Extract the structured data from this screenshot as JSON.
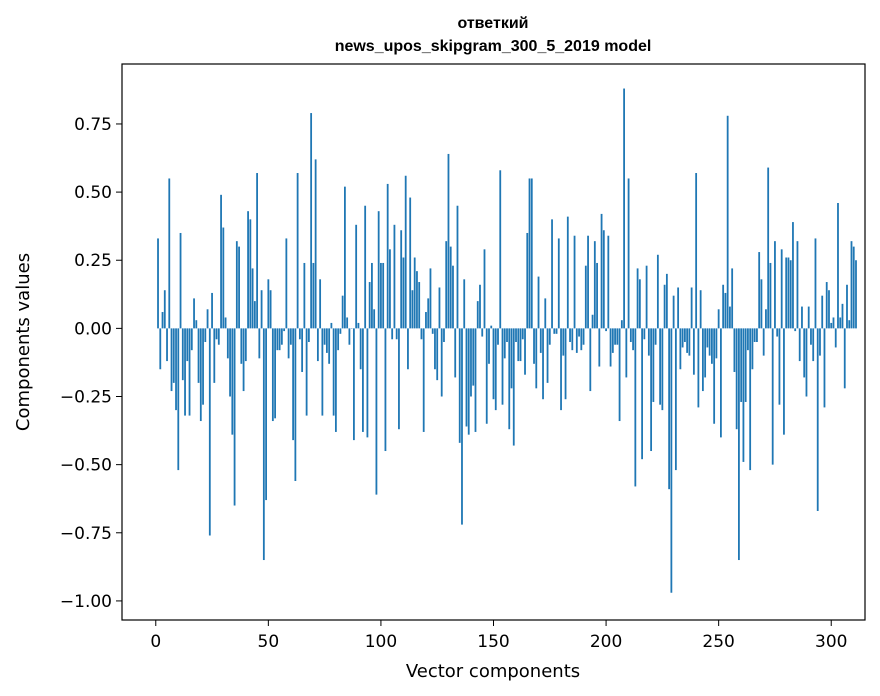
{
  "chart_data": {
    "type": "bar",
    "title_line1": "ответкий",
    "title_line2": "news_upos_skipgram_300_5_2019 model",
    "xlabel": "Vector components",
    "ylabel": "Components values",
    "xlim": [
      -15,
      315
    ],
    "ylim": [
      -1.07,
      0.97
    ],
    "xticks": [
      0,
      50,
      100,
      150,
      200,
      250,
      300
    ],
    "xtick_labels": [
      "0",
      "50",
      "100",
      "150",
      "200",
      "250",
      "300"
    ],
    "yticks": [
      0.75,
      0.5,
      0.25,
      0.0,
      -0.25,
      -0.5,
      -0.75,
      -1.0
    ],
    "ytick_labels": [
      "0.75",
      "0.50",
      "0.25",
      "0.00",
      "−0.25",
      "−0.50",
      "−0.75",
      "−1.00"
    ],
    "bar_color": "#1f77b4",
    "x_start": 1,
    "values": [
      0.33,
      -0.15,
      0.06,
      0.14,
      -0.12,
      0.55,
      -0.23,
      -0.2,
      -0.3,
      -0.52,
      0.35,
      -0.19,
      -0.32,
      -0.12,
      -0.32,
      -0.08,
      0.11,
      0.03,
      -0.2,
      -0.34,
      -0.28,
      -0.05,
      0.07,
      -0.76,
      0.13,
      -0.2,
      -0.04,
      -0.06,
      0.49,
      0.37,
      0.04,
      -0.11,
      -0.25,
      -0.39,
      -0.65,
      0.32,
      0.3,
      -0.13,
      -0.23,
      -0.12,
      0.43,
      0.4,
      0.22,
      0.1,
      0.57,
      -0.11,
      0.14,
      -0.85,
      -0.63,
      0.18,
      0.14,
      -0.34,
      -0.33,
      -0.08,
      -0.08,
      -0.06,
      -0.01,
      0.33,
      -0.11,
      -0.06,
      -0.41,
      -0.56,
      0.57,
      -0.04,
      -0.16,
      0.24,
      -0.32,
      -0.05,
      0.79,
      0.24,
      0.62,
      -0.12,
      0.18,
      -0.32,
      -0.06,
      -0.09,
      -0.13,
      0.02,
      -0.32,
      -0.38,
      -0.08,
      -0.02,
      0.12,
      0.52,
      0.04,
      -0.06,
      0.0,
      -0.41,
      0.38,
      0.02,
      -0.15,
      -0.38,
      0.45,
      -0.4,
      0.17,
      0.24,
      0.07,
      -0.61,
      0.43,
      0.24,
      0.24,
      -0.45,
      0.53,
      0.29,
      -0.04,
      0.38,
      -0.04,
      -0.37,
      0.36,
      0.26,
      0.56,
      -0.15,
      0.48,
      0.14,
      0.26,
      0.21,
      0.17,
      -0.04,
      -0.38,
      0.06,
      0.11,
      0.22,
      -0.02,
      -0.15,
      -0.19,
      0.15,
      -0.25,
      -0.05,
      0.32,
      0.64,
      0.3,
      0.23,
      -0.18,
      0.45,
      -0.42,
      -0.72,
      0.18,
      -0.36,
      -0.39,
      -0.25,
      -0.21,
      -0.38,
      0.1,
      0.16,
      -0.03,
      0.29,
      -0.35,
      -0.13,
      0.01,
      -0.26,
      -0.3,
      -0.06,
      0.58,
      -0.28,
      -0.11,
      -0.05,
      -0.37,
      -0.22,
      -0.43,
      -0.05,
      -0.12,
      -0.12,
      -0.04,
      -0.17,
      0.35,
      0.55,
      0.55,
      -0.13,
      -0.22,
      0.19,
      -0.09,
      -0.26,
      0.11,
      -0.2,
      -0.06,
      0.4,
      -0.02,
      -0.02,
      0.33,
      -0.3,
      -0.1,
      -0.26,
      0.41,
      -0.05,
      -0.08,
      0.34,
      -0.09,
      -0.03,
      -0.08,
      -0.06,
      0.23,
      0.34,
      -0.23,
      0.05,
      0.32,
      0.24,
      -0.14,
      0.42,
      0.36,
      -0.01,
      0.34,
      -0.14,
      -0.09,
      -0.06,
      -0.06,
      -0.34,
      0.03,
      0.88,
      -0.18,
      0.55,
      -0.05,
      -0.08,
      -0.58,
      0.22,
      0.18,
      -0.48,
      -0.04,
      0.23,
      -0.1,
      -0.45,
      -0.27,
      -0.06,
      0.27,
      -0.28,
      -0.3,
      0.16,
      0.2,
      -0.59,
      -0.97,
      0.12,
      -0.52,
      0.15,
      -0.15,
      -0.07,
      -0.05,
      -0.09,
      -0.1,
      0.15,
      -0.17,
      0.57,
      -0.29,
      0.14,
      -0.23,
      -0.18,
      -0.07,
      -0.1,
      -0.13,
      -0.35,
      -0.11,
      0.07,
      -0.4,
      0.16,
      0.13,
      0.78,
      0.08,
      0.22,
      -0.16,
      -0.37,
      -0.85,
      -0.27,
      -0.49,
      -0.27,
      -0.08,
      -0.52,
      -0.15,
      -0.05,
      -0.05,
      0.28,
      0.18,
      -0.1,
      0.07,
      0.59,
      0.24,
      -0.5,
      0.32,
      -0.03,
      -0.28,
      0.29,
      -0.39,
      0.26,
      0.26,
      0.25,
      0.39,
      -0.01,
      0.32,
      -0.12,
      0.08,
      -0.18,
      -0.25,
      0.08,
      -0.06,
      -0.12,
      0.33,
      -0.67,
      -0.1,
      0.12,
      -0.29,
      0.17,
      0.14,
      0.02,
      0.04,
      -0.07,
      0.46,
      0.04,
      0.09,
      -0.22,
      0.16,
      0.03,
      0.32,
      0.3,
      0.25
    ]
  }
}
